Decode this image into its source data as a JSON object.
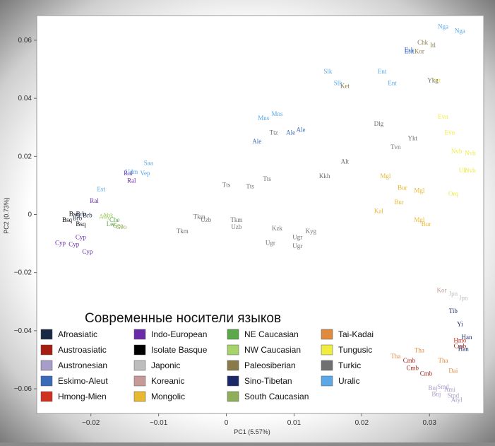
{
  "chart_data": {
    "type": "scatter",
    "title": "Современные носители языков",
    "xlabel": "PC1  (5.57%)",
    "ylabel": "PC2  (0.73%)",
    "xlim": [
      -0.028,
      0.038
    ],
    "ylim": [
      -0.0685,
      0.0685
    ],
    "xticks": [
      -0.02,
      -0.01,
      0,
      0.01,
      0.02,
      0.03
    ],
    "xtick_labels": [
      "−0.02",
      "−0.01",
      "0",
      "0.01",
      "0.02",
      "0.03"
    ],
    "yticks": [
      -0.06,
      -0.04,
      -0.02,
      0,
      0.02,
      0.04,
      0.06
    ],
    "ytick_labels": [
      "−0.06",
      "−0.04",
      "−0.02",
      "0",
      "0.02",
      "0.04",
      "0.06"
    ],
    "grid": false,
    "legend_position": "bottom-left",
    "series": [
      {
        "name": "Afroasiatic",
        "color": "#1a2a44",
        "points": [
          [
            -0.0215,
            -0.0005,
            "Brb"
          ],
          [
            -0.022,
            -0.002,
            "Brb"
          ],
          [
            -0.0205,
            -0.001,
            "Brb"
          ]
        ]
      },
      {
        "name": "Austroasiatic",
        "color": "#a61e12",
        "points": [
          [
            0.027,
            -0.051,
            "Cmb"
          ],
          [
            0.0275,
            -0.0535,
            "Cmb"
          ],
          [
            0.0295,
            -0.0555,
            "Cmb"
          ],
          [
            0.0345,
            -0.046,
            "Cmb"
          ]
        ]
      },
      {
        "name": "Austronesian",
        "color": "#a89cc8",
        "points": [
          [
            0.032,
            -0.06,
            "Smd"
          ],
          [
            0.033,
            -0.061,
            "Ami"
          ],
          [
            0.0305,
            -0.0605,
            "Bnj"
          ],
          [
            0.0335,
            -0.063,
            "Smd"
          ],
          [
            0.034,
            -0.0645,
            "Atyl"
          ],
          [
            0.031,
            -0.0625,
            "Bnj"
          ]
        ]
      },
      {
        "name": "Eskimo-Aleut",
        "color": "#3a6bb8",
        "points": [
          [
            0.0095,
            0.0275,
            "Ale"
          ],
          [
            0.011,
            0.0285,
            "Ale"
          ],
          [
            0.0045,
            0.0245,
            "Ale"
          ],
          [
            0.027,
            0.0555,
            "Esk"
          ],
          [
            0.027,
            0.056,
            "Esk"
          ]
        ]
      },
      {
        "name": "Hmong-Mien",
        "color": "#d03020",
        "points": [
          [
            0.0345,
            -0.044,
            "Hmo"
          ]
        ]
      },
      {
        "name": "Indo-European",
        "color": "#6a2aa8",
        "points": [
          [
            -0.0225,
            -0.011,
            "Cyp"
          ],
          [
            -0.0205,
            -0.0135,
            "Cyp"
          ],
          [
            -0.014,
            0.011,
            "Ral"
          ],
          [
            -0.0145,
            0.0135,
            "Ral"
          ],
          [
            -0.0195,
            0.004,
            "Ral"
          ],
          [
            -0.0245,
            -0.0105,
            "Cyp"
          ],
          [
            -0.0215,
            -0.0085,
            "Cyp"
          ]
        ]
      },
      {
        "name": "Isolate Basque",
        "color": "#000000",
        "points": [
          [
            -0.0225,
            -0.0005,
            "Bsq"
          ],
          [
            -0.0215,
            -0.004,
            "Bsq"
          ],
          [
            -0.0235,
            -0.0025,
            "Bsq"
          ]
        ]
      },
      {
        "name": "Japonic",
        "color": "#bdbdbd",
        "points": [
          [
            0.0335,
            -0.028,
            "Jpn"
          ],
          [
            0.035,
            -0.0295,
            "Jpn"
          ]
        ]
      },
      {
        "name": "Koreanic",
        "color": "#c79a9a",
        "points": [
          [
            0.0318,
            -0.0268,
            "Kor"
          ]
        ]
      },
      {
        "name": "Mongolic",
        "color": "#e8b830",
        "points": [
          [
            0.0235,
            0.0125,
            "Mgl"
          ],
          [
            0.026,
            0.0085,
            "Bur"
          ],
          [
            0.0255,
            0.0035,
            "Bur"
          ],
          [
            0.0285,
            -0.0025,
            "Mgl"
          ],
          [
            0.0225,
            0.0005,
            "Kal"
          ],
          [
            0.0285,
            0.0075,
            "Mgl"
          ],
          [
            0.0295,
            -0.004,
            "Bur"
          ]
        ]
      },
      {
        "name": "NE Caucasian",
        "color": "#5aa84a",
        "points": [
          [
            -0.0165,
            -0.0025,
            "Che"
          ],
          [
            -0.017,
            -0.004,
            "Lez"
          ]
        ]
      },
      {
        "name": "NW Caucasian",
        "color": "#a6d36a",
        "points": [
          [
            -0.018,
            -0.0015,
            "Ady"
          ],
          [
            -0.0175,
            -0.001,
            "Abk"
          ]
        ]
      },
      {
        "name": "Paleosiberian",
        "color": "#8a7a4a",
        "points": [
          [
            0.029,
            0.0585,
            "Chk"
          ],
          [
            0.0285,
            0.0555,
            "Kor"
          ],
          [
            0.0175,
            0.0435,
            "Ket"
          ],
          [
            0.0305,
            0.0575,
            "Itl"
          ]
        ]
      },
      {
        "name": "Sino-Tibetan",
        "color": "#1a2868",
        "points": [
          [
            0.0335,
            -0.034,
            "Tib"
          ],
          [
            0.0355,
            -0.043,
            "Han"
          ],
          [
            0.035,
            -0.047,
            "Han"
          ],
          [
            0.0345,
            -0.0385,
            "Yi"
          ]
        ]
      },
      {
        "name": "South Caucasian",
        "color": "#8fae5a",
        "points": [
          [
            -0.0155,
            -0.005,
            "Geo"
          ],
          [
            -0.016,
            -0.0045,
            "Geo"
          ]
        ]
      },
      {
        "name": "Tai-Kadai",
        "color": "#e08a40",
        "points": [
          [
            0.0285,
            -0.0475,
            "Tha"
          ],
          [
            0.025,
            -0.0495,
            "Tha"
          ],
          [
            0.032,
            -0.051,
            "Tha"
          ],
          [
            0.0335,
            -0.0545,
            "Dai"
          ]
        ]
      },
      {
        "name": "Tungusic",
        "color": "#f0ec40",
        "points": [
          [
            0.032,
            0.033,
            "Evn"
          ],
          [
            0.034,
            0.021,
            "Nvh"
          ],
          [
            0.036,
            0.0205,
            "Nvh"
          ],
          [
            0.035,
            0.0145,
            "Ulc"
          ],
          [
            0.0335,
            0.0065,
            "Orq"
          ],
          [
            0.033,
            0.0275,
            "Evn"
          ],
          [
            0.031,
            0.0455,
            "Evt"
          ],
          [
            0.036,
            0.0145,
            "Nvh"
          ]
        ]
      },
      {
        "name": "Turkic",
        "color": "#707070",
        "points": [
          [
            -0.0065,
            -0.0065,
            "Tkm"
          ],
          [
            -0.004,
            -0.0015,
            "Tkm"
          ],
          [
            -0.003,
            -0.0025,
            "Uzb"
          ],
          [
            0.0015,
            -0.0025,
            "Tkm"
          ],
          [
            0.0075,
            -0.0055,
            "Kzk"
          ],
          [
            0.0125,
            -0.0065,
            "Kyg"
          ],
          [
            0.0065,
            -0.0105,
            "Ugr"
          ],
          [
            0.0105,
            -0.0085,
            "Ugr"
          ],
          [
            0.006,
            0.0115,
            "Tts"
          ],
          [
            0.0035,
            0.009,
            "Tts"
          ],
          [
            0.0,
            0.0095,
            "Tts"
          ],
          [
            0.0175,
            0.0175,
            "Alt"
          ],
          [
            0.0225,
            0.0305,
            "Dlg"
          ],
          [
            0.0275,
            0.0255,
            "Ykt"
          ],
          [
            0.025,
            0.0225,
            "Tvn"
          ],
          [
            0.0145,
            0.0125,
            "Kkh"
          ],
          [
            0.007,
            0.0275,
            "Ttz"
          ],
          [
            0.0305,
            0.0455,
            "Ykg"
          ],
          [
            0.0015,
            -0.005,
            "Uzb"
          ],
          [
            0.0105,
            -0.0115,
            "Ugr"
          ]
        ]
      },
      {
        "name": "Uralic",
        "color": "#5aa8e8",
        "points": [
          [
            -0.0115,
            0.017,
            "Saa"
          ],
          [
            -0.014,
            0.014,
            "Udm"
          ],
          [
            0.0055,
            0.0325,
            "Mns"
          ],
          [
            0.015,
            0.0485,
            "Slk"
          ],
          [
            0.0165,
            0.0445,
            "Slk"
          ],
          [
            0.023,
            0.0485,
            "Ent"
          ],
          [
            0.0245,
            0.0445,
            "Ent"
          ],
          [
            0.032,
            0.064,
            "Nga"
          ],
          [
            0.0345,
            0.0625,
            "Nga"
          ],
          [
            -0.012,
            0.0135,
            "Vep"
          ],
          [
            -0.0185,
            0.008,
            "Est"
          ],
          [
            0.0075,
            0.034,
            "Mns"
          ]
        ]
      }
    ]
  }
}
